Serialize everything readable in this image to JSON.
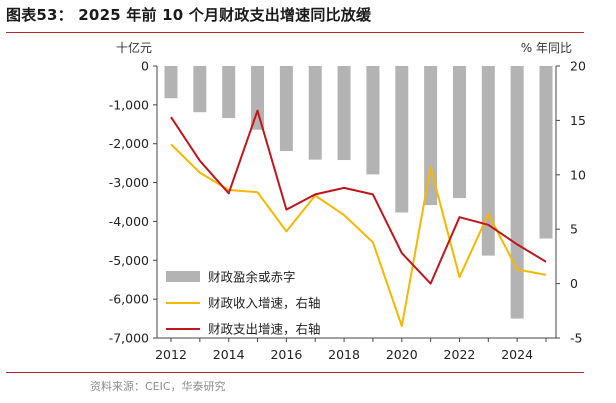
{
  "title": "图表53： 2025 年前 10 个月财政支出增速同比放缓",
  "source": "资料来源：CEIC，华泰研究",
  "chart_data": {
    "type": "bar+line",
    "x": [
      2012,
      2013,
      2014,
      2015,
      2016,
      2017,
      2018,
      2019,
      2020,
      2021,
      2022,
      2023,
      2024,
      2025
    ],
    "x_ticks": [
      "2012",
      "2014",
      "2016",
      "2018",
      "2020",
      "2022",
      "2024"
    ],
    "left_axis": {
      "label": "十亿元",
      "ylim": [
        -7000,
        0
      ],
      "ticks": [
        "0",
        "-1,000",
        "-2,000",
        "-3,000",
        "-4,000",
        "-5,000",
        "-6,000",
        "-7,000"
      ]
    },
    "right_axis": {
      "label": "% 年同比",
      "ylim": [
        -5,
        20
      ],
      "ticks": [
        "20",
        "15",
        "10",
        "5",
        "0",
        "-5"
      ]
    },
    "series": [
      {
        "name": "财政盈余或赤字",
        "kind": "bar",
        "axis": "left",
        "color": "#b3b3b3",
        "values": [
          -830,
          -1190,
          -1340,
          -1640,
          -2190,
          -2410,
          -2420,
          -2790,
          -3770,
          -3580,
          -3400,
          -4880,
          -6500,
          -4440
        ]
      },
      {
        "name": "财政收入增速，右轴",
        "kind": "line",
        "axis": "right",
        "color": "#f5b800",
        "values": [
          12.8,
          10.2,
          8.6,
          8.4,
          4.8,
          8.1,
          6.3,
          3.8,
          -3.9,
          10.7,
          0.6,
          6.4,
          1.3,
          0.8
        ]
      },
      {
        "name": "财政支出增速，右轴",
        "kind": "line",
        "axis": "right",
        "color": "#c0151c",
        "values": [
          15.3,
          11.3,
          8.3,
          15.9,
          6.8,
          8.2,
          8.8,
          8.2,
          2.8,
          0.0,
          6.1,
          5.4,
          3.6,
          2.0
        ]
      }
    ],
    "legend": "lower-left",
    "grid": false
  }
}
